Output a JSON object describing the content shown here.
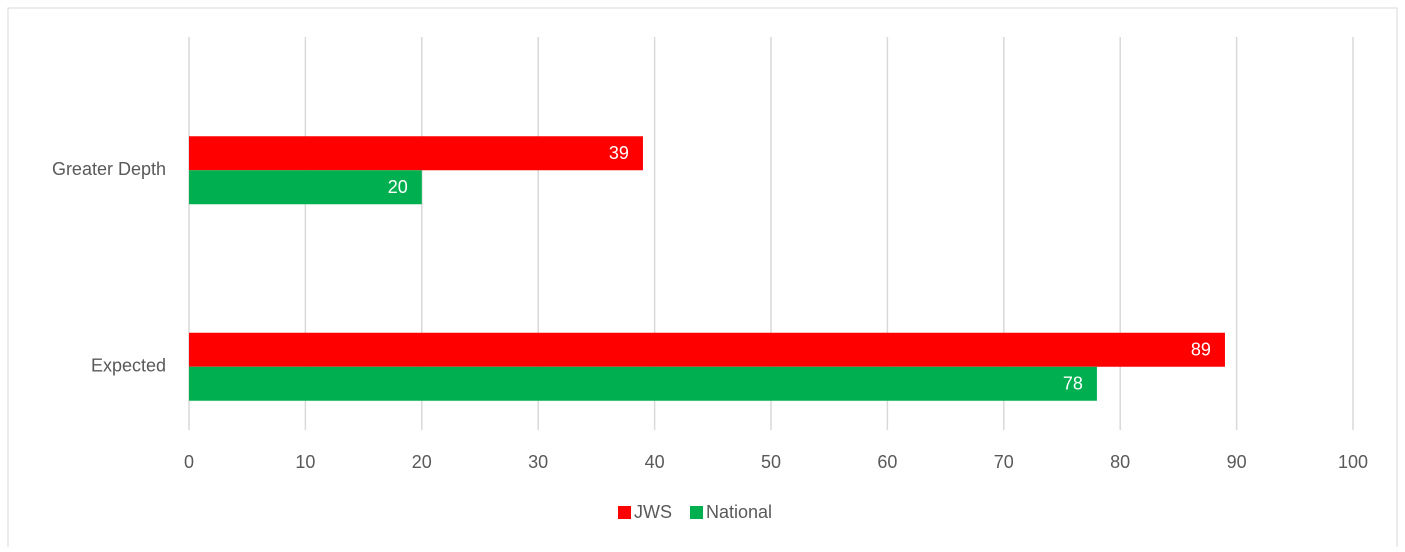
{
  "chart_data": {
    "type": "bar",
    "orientation": "horizontal",
    "categories": [
      "Greater Depth",
      "Expected"
    ],
    "series": [
      {
        "name": "JWS",
        "color": "#ff0000",
        "values": [
          39,
          89
        ]
      },
      {
        "name": "National",
        "color": "#00b050",
        "values": [
          20,
          78
        ]
      }
    ],
    "xlim": [
      0,
      100
    ],
    "xticks": [
      0,
      10,
      20,
      30,
      40,
      50,
      60,
      70,
      80,
      90,
      100
    ],
    "grid": true,
    "legend": "bottom"
  }
}
